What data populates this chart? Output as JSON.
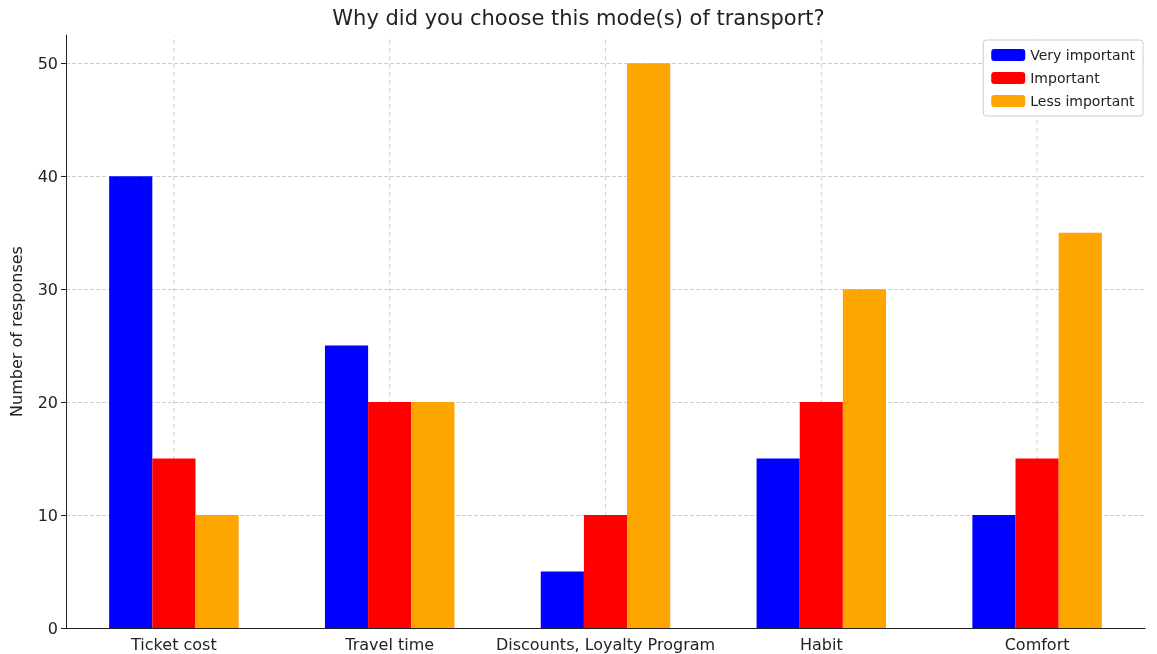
{
  "chart_data": {
    "type": "bar",
    "title": "Why did you choose this mode(s) of transport?",
    "ylabel": "Number of responses",
    "categories": [
      "Ticket cost",
      "Travel time",
      "Discounts, Loyalty Program",
      "Habit",
      "Comfort"
    ],
    "series": [
      {
        "name": "Very important",
        "color": "#0000ff",
        "values": [
          40,
          25,
          5,
          15,
          10
        ]
      },
      {
        "name": "Important",
        "color": "#ff0000",
        "values": [
          15,
          20,
          10,
          20,
          15
        ]
      },
      {
        "name": "Less important",
        "color": "#ffa500",
        "values": [
          10,
          20,
          50,
          30,
          35
        ]
      }
    ],
    "ylim": [
      0,
      52.5
    ],
    "yticks": [
      0,
      10,
      20,
      30,
      40,
      50
    ],
    "grid": true,
    "legend": "top right"
  }
}
